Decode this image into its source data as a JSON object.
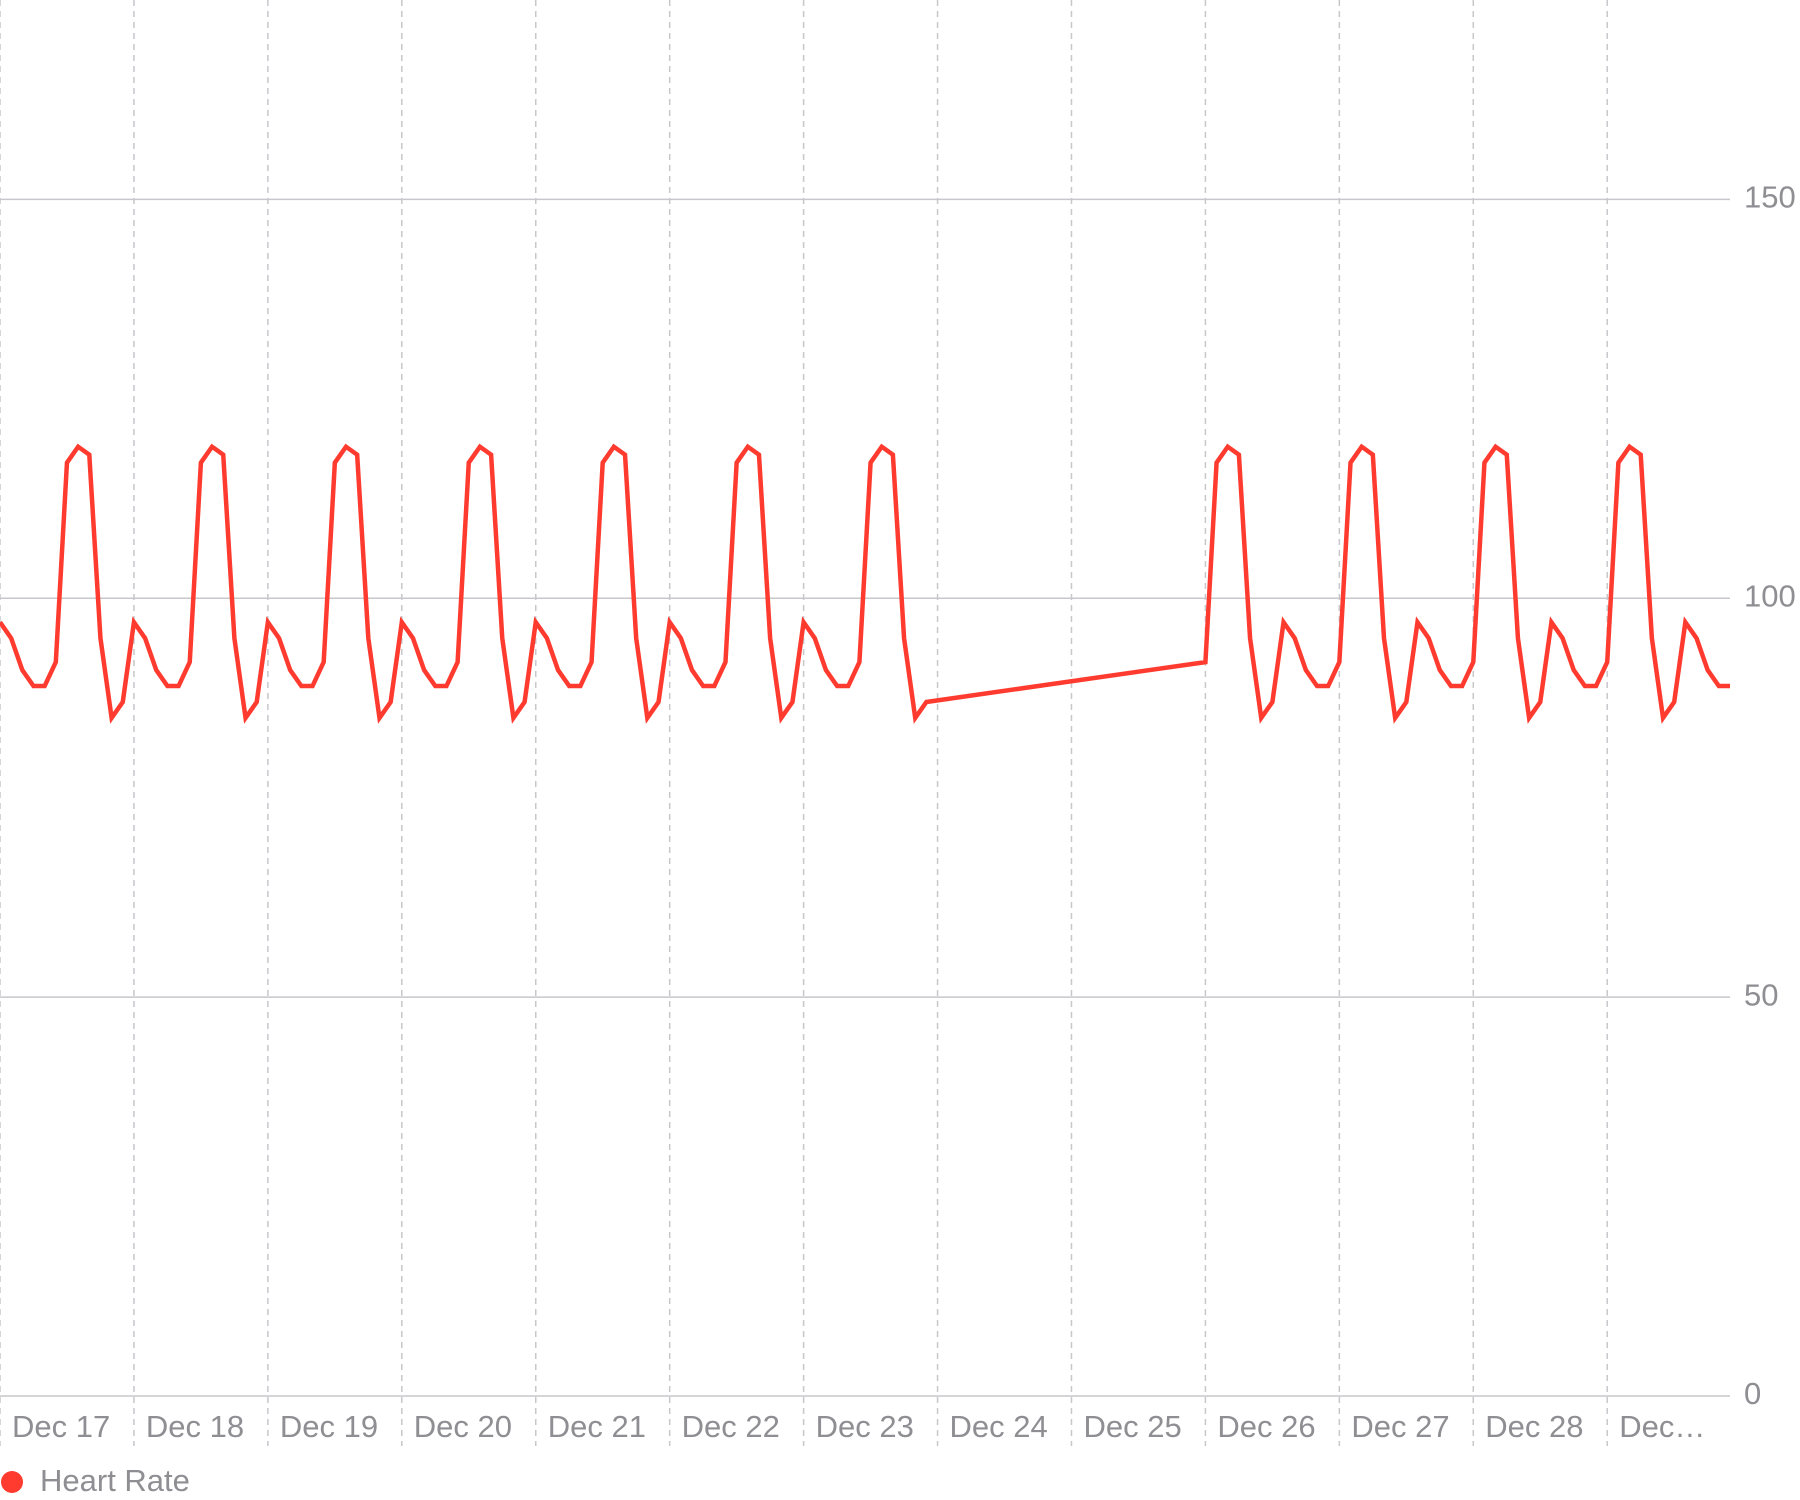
{
  "chart_data": {
    "type": "line",
    "x": [
      0,
      2,
      4,
      6,
      8,
      10,
      12,
      14,
      16,
      18,
      20,
      22,
      24,
      26,
      28,
      30,
      32,
      34,
      36,
      38,
      40,
      42,
      44,
      46,
      48,
      50,
      52,
      54,
      56,
      58,
      60,
      62,
      64,
      66,
      68,
      70,
      72,
      74,
      76,
      78,
      80,
      82,
      84,
      86,
      88,
      90,
      92,
      94,
      96,
      98,
      100,
      102,
      104,
      106,
      108,
      110,
      112,
      114,
      116,
      118,
      120,
      122,
      124,
      126,
      128,
      130,
      132,
      134,
      136,
      138,
      140,
      142,
      144,
      146,
      148,
      150,
      152,
      154,
      156,
      158,
      160,
      162,
      164,
      166,
      216,
      218,
      220,
      222,
      224,
      226,
      228,
      230,
      232,
      234,
      236,
      238,
      240,
      242,
      244,
      246,
      248,
      250,
      252,
      254,
      256,
      258,
      260,
      262,
      264,
      266,
      268,
      270,
      272,
      274,
      276,
      278,
      280,
      282,
      284,
      286,
      288,
      290,
      292,
      294,
      296,
      298,
      300,
      302,
      304,
      306,
      308,
      310
    ],
    "series": [
      {
        "name": "Heart Rate",
        "color": "#ff3b30",
        "values": [
          97,
          95,
          91,
          89,
          89,
          92,
          117,
          119,
          118,
          95,
          85,
          87,
          97,
          95,
          91,
          89,
          89,
          92,
          117,
          119,
          118,
          95,
          85,
          87,
          97,
          95,
          91,
          89,
          89,
          92,
          117,
          119,
          118,
          95,
          85,
          87,
          97,
          95,
          91,
          89,
          89,
          92,
          117,
          119,
          118,
          95,
          85,
          87,
          97,
          95,
          91,
          89,
          89,
          92,
          117,
          119,
          118,
          95,
          85,
          87,
          97,
          95,
          91,
          89,
          89,
          92,
          117,
          119,
          118,
          95,
          85,
          87,
          97,
          95,
          91,
          89,
          89,
          92,
          117,
          119,
          118,
          95,
          85,
          87,
          92,
          117,
          119,
          118,
          95,
          85,
          87,
          97,
          95,
          91,
          89,
          89,
          92,
          117,
          119,
          118,
          95,
          85,
          87,
          97,
          95,
          91,
          89,
          89,
          92,
          117,
          119,
          118,
          95,
          85,
          87,
          97,
          95,
          91,
          89,
          89,
          92,
          117,
          119,
          118,
          95,
          85,
          87,
          97,
          95,
          91,
          89,
          89
        ]
      }
    ],
    "xlim": [
      0,
      310
    ],
    "xticks": [
      {
        "value": 0,
        "label": "Dec 17"
      },
      {
        "value": 24,
        "label": "Dec 18"
      },
      {
        "value": 48,
        "label": "Dec 19"
      },
      {
        "value": 72,
        "label": "Dec 20"
      },
      {
        "value": 96,
        "label": "Dec 21"
      },
      {
        "value": 120,
        "label": "Dec 22"
      },
      {
        "value": 144,
        "label": "Dec 23"
      },
      {
        "value": 168,
        "label": "Dec 24"
      },
      {
        "value": 192,
        "label": "Dec 25"
      },
      {
        "value": 216,
        "label": "Dec 26"
      },
      {
        "value": 240,
        "label": "Dec 27"
      },
      {
        "value": 264,
        "label": "Dec 28"
      },
      {
        "value": 288,
        "label": "Dec…"
      }
    ],
    "ylim": [
      0,
      175
    ],
    "yticks": [
      0,
      50,
      100,
      150
    ],
    "grid": true,
    "legend": "bottom-left"
  }
}
